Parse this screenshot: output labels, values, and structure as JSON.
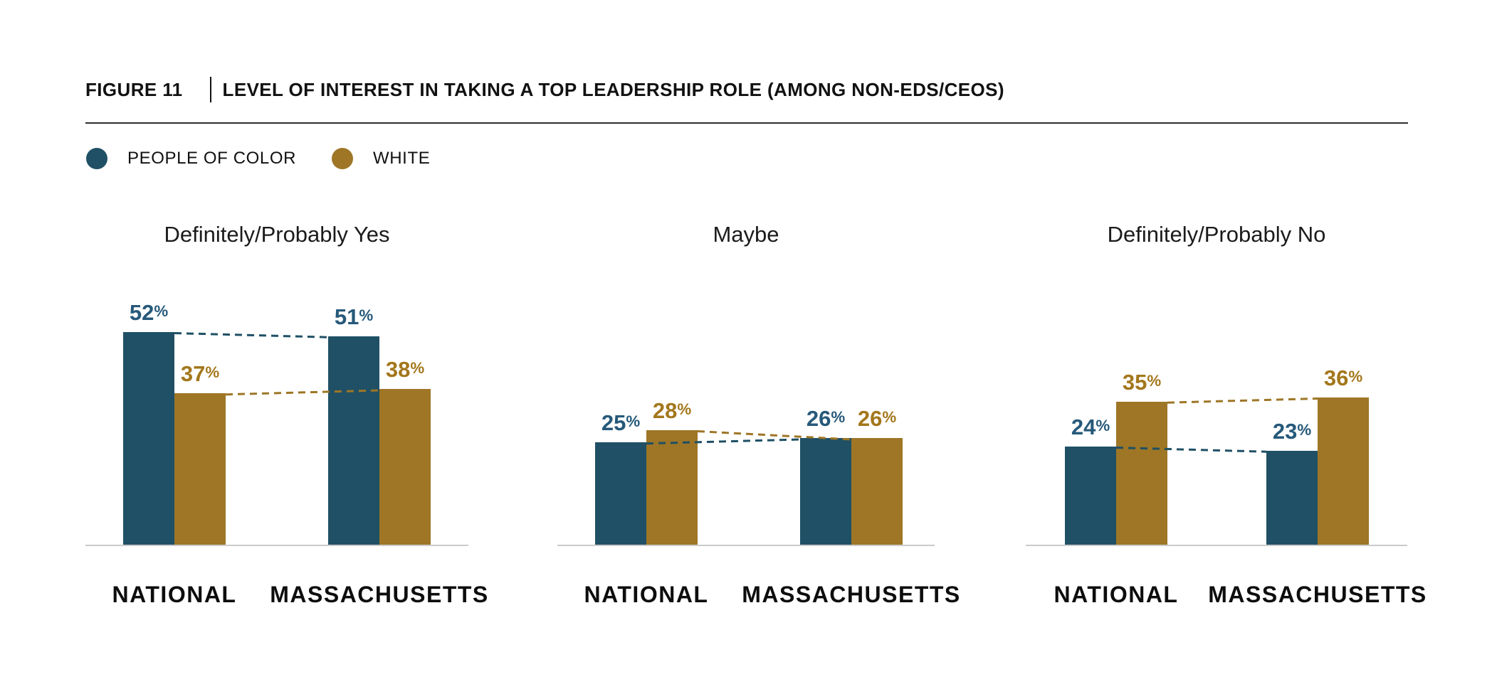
{
  "header": {
    "figure_label": "FIGURE 11",
    "title": "LEVEL OF INTEREST IN TAKING A TOP LEADERSHIP ROLE (AMONG NON-EDS/CEOS)"
  },
  "legend": {
    "items": [
      {
        "label": "PEOPLE OF COLOR",
        "color": "#1F5065"
      },
      {
        "label": "WHITE",
        "color": "#9E7626"
      }
    ]
  },
  "chart_data": {
    "type": "bar",
    "figure_label": "FIGURE 11",
    "title": "LEVEL OF INTEREST IN TAKING A TOP LEADERSHIP ROLE (AMONG NON-EDS/CEOS)",
    "unit": "%",
    "categories": [
      "NATIONAL",
      "MASSACHUSETTS"
    ],
    "series": [
      {
        "name": "PEOPLE OF COLOR",
        "color": "#1F5065",
        "label_color": "#26597A"
      },
      {
        "name": "WHITE",
        "color": "#9E7626",
        "label_color": "#A3771C"
      }
    ],
    "panels": [
      {
        "title": "Definitely/Probably Yes",
        "groups": [
          {
            "category": "NATIONAL",
            "values": [
              52,
              37
            ]
          },
          {
            "category": "MASSACHUSETTS",
            "values": [
              51,
              38
            ]
          }
        ]
      },
      {
        "title": "Maybe",
        "groups": [
          {
            "category": "NATIONAL",
            "values": [
              25,
              28
            ]
          },
          {
            "category": "MASSACHUSETTS",
            "values": [
              26,
              26
            ]
          }
        ]
      },
      {
        "title": "Definitely/Probably No",
        "groups": [
          {
            "category": "NATIONAL",
            "values": [
              24,
              35
            ]
          },
          {
            "category": "MASSACHUSETTS",
            "values": [
              23,
              36
            ]
          }
        ]
      }
    ],
    "ylim": [
      0,
      60
    ],
    "value_label_format": "{value}%",
    "grid": false,
    "legend_position": "top-left",
    "connector_style": "dashed",
    "axis_line_color": "#CBCBCB"
  }
}
